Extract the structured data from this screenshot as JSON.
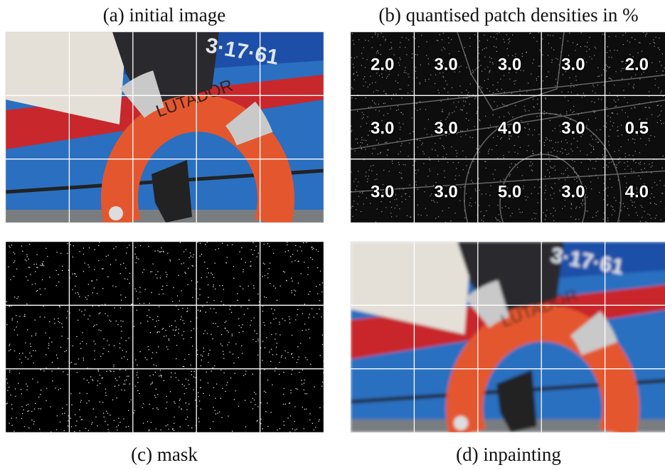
{
  "panels": [
    {
      "caption": "(a) initial image"
    },
    {
      "caption": "(b) quantised patch densities in %",
      "densities": [
        [
          "2.0",
          "3.0",
          "3.0",
          "3.0",
          "2.0"
        ],
        [
          "3.0",
          "3.0",
          "4.0",
          "3.0",
          "0.5"
        ],
        [
          "3.0",
          "3.0",
          "5.0",
          "3.0",
          "4.0"
        ]
      ]
    },
    {
      "caption": "(c) mask"
    },
    {
      "caption": "(d) inpainting"
    }
  ]
}
